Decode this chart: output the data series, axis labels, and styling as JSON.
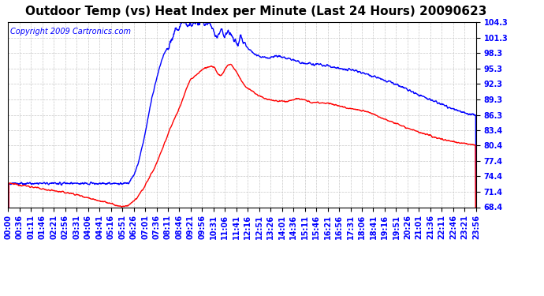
{
  "title": "Outdoor Temp (vs) Heat Index per Minute (Last 24 Hours) 20090623",
  "copyright_text": "Copyright 2009 Cartronics.com",
  "y_ticks": [
    68.4,
    71.4,
    74.4,
    77.4,
    80.4,
    83.4,
    86.3,
    89.3,
    92.3,
    95.3,
    98.3,
    101.3,
    104.3
  ],
  "y_min": 68.4,
  "y_max": 104.3,
  "x_tick_labels_display": [
    "00:00",
    "00:36",
    "01:11",
    "01:46",
    "02:21",
    "02:56",
    "03:31",
    "04:06",
    "04:41",
    "05:16",
    "05:51",
    "06:26",
    "07:01",
    "07:36",
    "08:11",
    "08:46",
    "09:21",
    "09:56",
    "10:31",
    "11:06",
    "11:41",
    "12:16",
    "12:51",
    "13:26",
    "14:01",
    "14:36",
    "15:11",
    "15:46",
    "16:21",
    "16:56",
    "17:31",
    "18:06",
    "18:41",
    "19:16",
    "19:51",
    "20:26",
    "21:01",
    "21:36",
    "22:11",
    "22:46",
    "23:21",
    "23:56"
  ],
  "line_color_heat_index": "#0000ff",
  "line_color_temp": "#ff0000",
  "background_color": "#ffffff",
  "grid_color": "#c8c8c8",
  "title_fontsize": 11,
  "copyright_fontsize": 7,
  "tick_fontsize": 7,
  "line_width": 1.0
}
